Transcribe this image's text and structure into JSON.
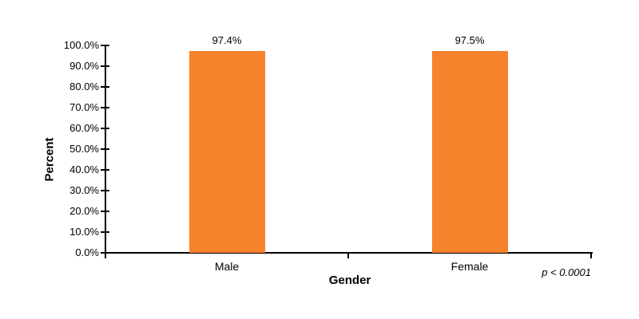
{
  "chart_data": {
    "type": "bar",
    "categories": [
      "Male",
      "Female"
    ],
    "values": [
      97.4,
      97.5
    ],
    "value_labels": [
      "97.4%",
      "97.5%"
    ],
    "xlabel": "Gender",
    "ylabel": "Percent",
    "ylim": [
      0,
      100
    ],
    "ytick_step": 10,
    "ytick_labels": [
      "0.0%",
      "10.0%",
      "20.0%",
      "30.0%",
      "40.0%",
      "50.0%",
      "60.0%",
      "70.0%",
      "80.0%",
      "90.0%",
      "100.0%"
    ],
    "annotation": "p < 0.0001",
    "bar_color": "#F6822C",
    "axis_color": "#000000",
    "grid": false,
    "legend": false
  }
}
